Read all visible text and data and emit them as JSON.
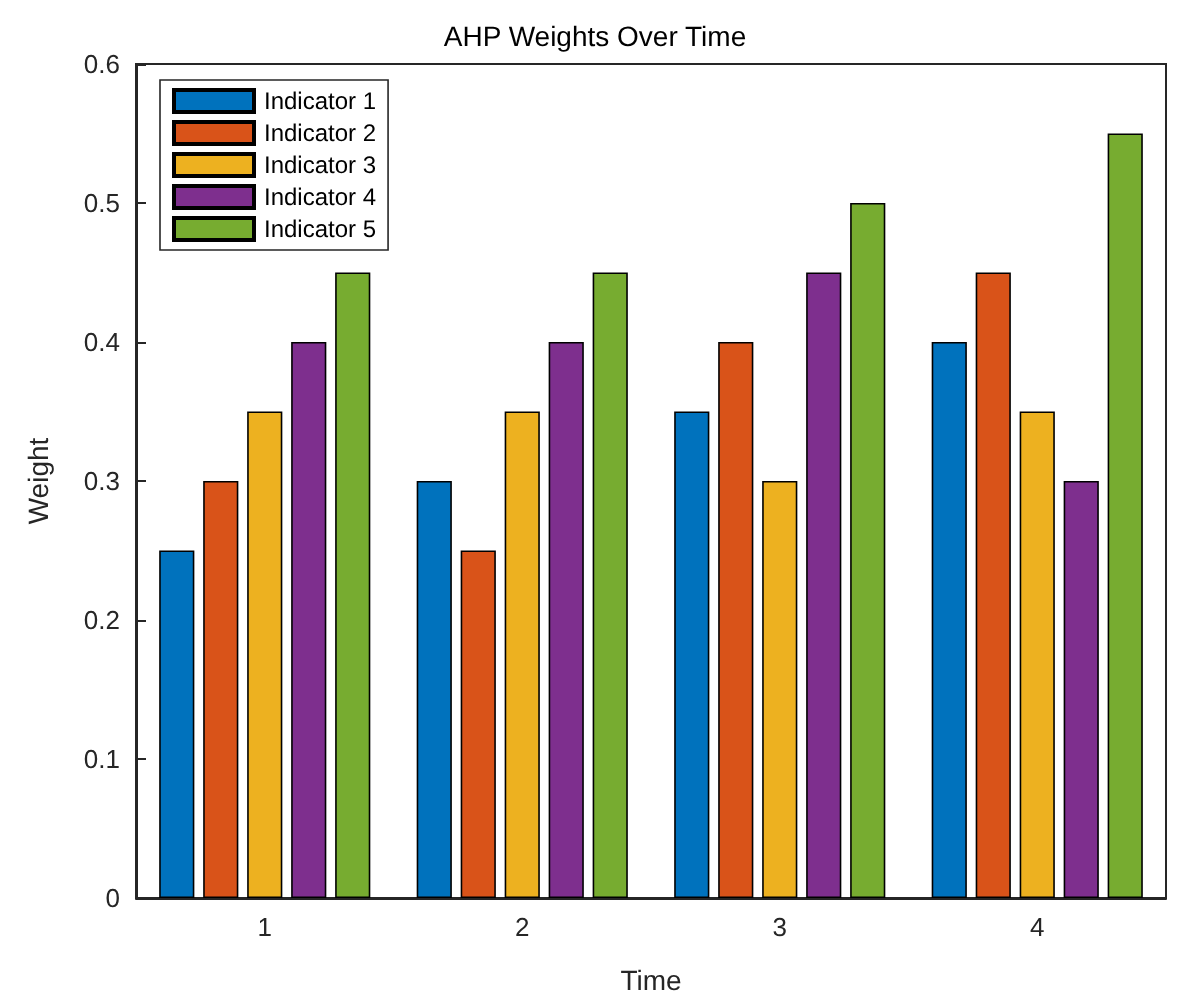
{
  "chart_data": {
    "type": "bar",
    "title": "AHP Weights Over Time",
    "xlabel": "Time",
    "ylabel": "Weight",
    "categories": [
      "1",
      "2",
      "3",
      "4"
    ],
    "series": [
      {
        "name": "Indicator 1",
        "color": "#0072bd",
        "values": [
          0.25,
          0.3,
          0.35,
          0.4
        ]
      },
      {
        "name": "Indicator 2",
        "color": "#d95319",
        "values": [
          0.3,
          0.25,
          0.4,
          0.45
        ]
      },
      {
        "name": "Indicator 3",
        "color": "#edb120",
        "values": [
          0.35,
          0.35,
          0.3,
          0.35
        ]
      },
      {
        "name": "Indicator 4",
        "color": "#7e2f8e",
        "values": [
          0.4,
          0.4,
          0.45,
          0.3
        ]
      },
      {
        "name": "Indicator 5",
        "color": "#77ac30",
        "values": [
          0.45,
          0.45,
          0.5,
          0.55
        ]
      }
    ],
    "ylim": [
      0,
      0.6
    ],
    "yticks": [
      0,
      0.1,
      0.2,
      0.3,
      0.4,
      0.5,
      0.6
    ],
    "grid": false,
    "legend": "top left"
  }
}
